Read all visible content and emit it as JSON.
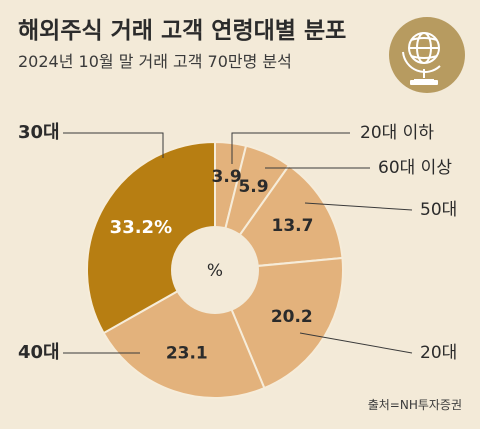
{
  "header": {
    "title": "해외주식 거래 고객 연령대별 분포",
    "subtitle": "2024년 10월 말 거래 고객 70만명 분석"
  },
  "source": "출처=NH투자증권",
  "center_label": "%",
  "icon": "globe-icon",
  "colors": {
    "background": "#f3ead8",
    "slice_light": "#e3b27c",
    "slice_highlight": "#b77e12",
    "slice_stroke": "#f6ecd9",
    "icon_circle": "#b79b60",
    "icon_glyph": "#ffffff"
  },
  "chart_data": {
    "type": "pie",
    "unit": "%",
    "categories": [
      "20대 이하",
      "60대 이상",
      "50대",
      "20대",
      "40대",
      "30대"
    ],
    "values": [
      3.9,
      5.9,
      13.7,
      20.2,
      23.1,
      33.2
    ],
    "value_labels": [
      "3.9",
      "5.9",
      "13.7",
      "20.2",
      "23.1",
      "33.2%"
    ],
    "highlight": "30대",
    "donut": true
  }
}
